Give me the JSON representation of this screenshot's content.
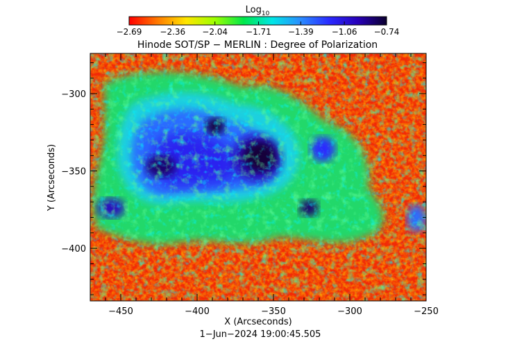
{
  "colorbar": {
    "label_main": "Log",
    "label_sub": "10",
    "ticks": [
      "−2.69",
      "−2.36",
      "−2.04",
      "−1.71",
      "−1.39",
      "−1.06",
      "−0.74"
    ],
    "tick_values": [
      -2.69,
      -2.36,
      -2.04,
      -1.71,
      -1.39,
      -1.06,
      -0.74
    ],
    "colors": [
      "#ff0000",
      "#ff7a00",
      "#ffe600",
      "#9dff00",
      "#00e84a",
      "#00e6e6",
      "#2a8cff",
      "#2a2aff",
      "#2800b8",
      "#0b002e"
    ]
  },
  "title": "Hinode SOT/SP − MERLIN : Degree of Polarization",
  "axes": {
    "xlabel": "X (Arcseconds)",
    "ylabel": "Y (Arcseconds)",
    "x_ticks": [
      "−450",
      "−400",
      "−350",
      "−300",
      "−250"
    ],
    "x_tick_values": [
      -450,
      -400,
      -350,
      -300,
      -250
    ],
    "y_ticks": [
      "−300",
      "−350",
      "−400"
    ],
    "y_tick_values": [
      -300,
      -350,
      -400
    ],
    "xlim": [
      -470,
      -250
    ],
    "ylim": [
      -434,
      -274
    ]
  },
  "timestamp": "1−Jun−2024 19:00:45.505"
}
